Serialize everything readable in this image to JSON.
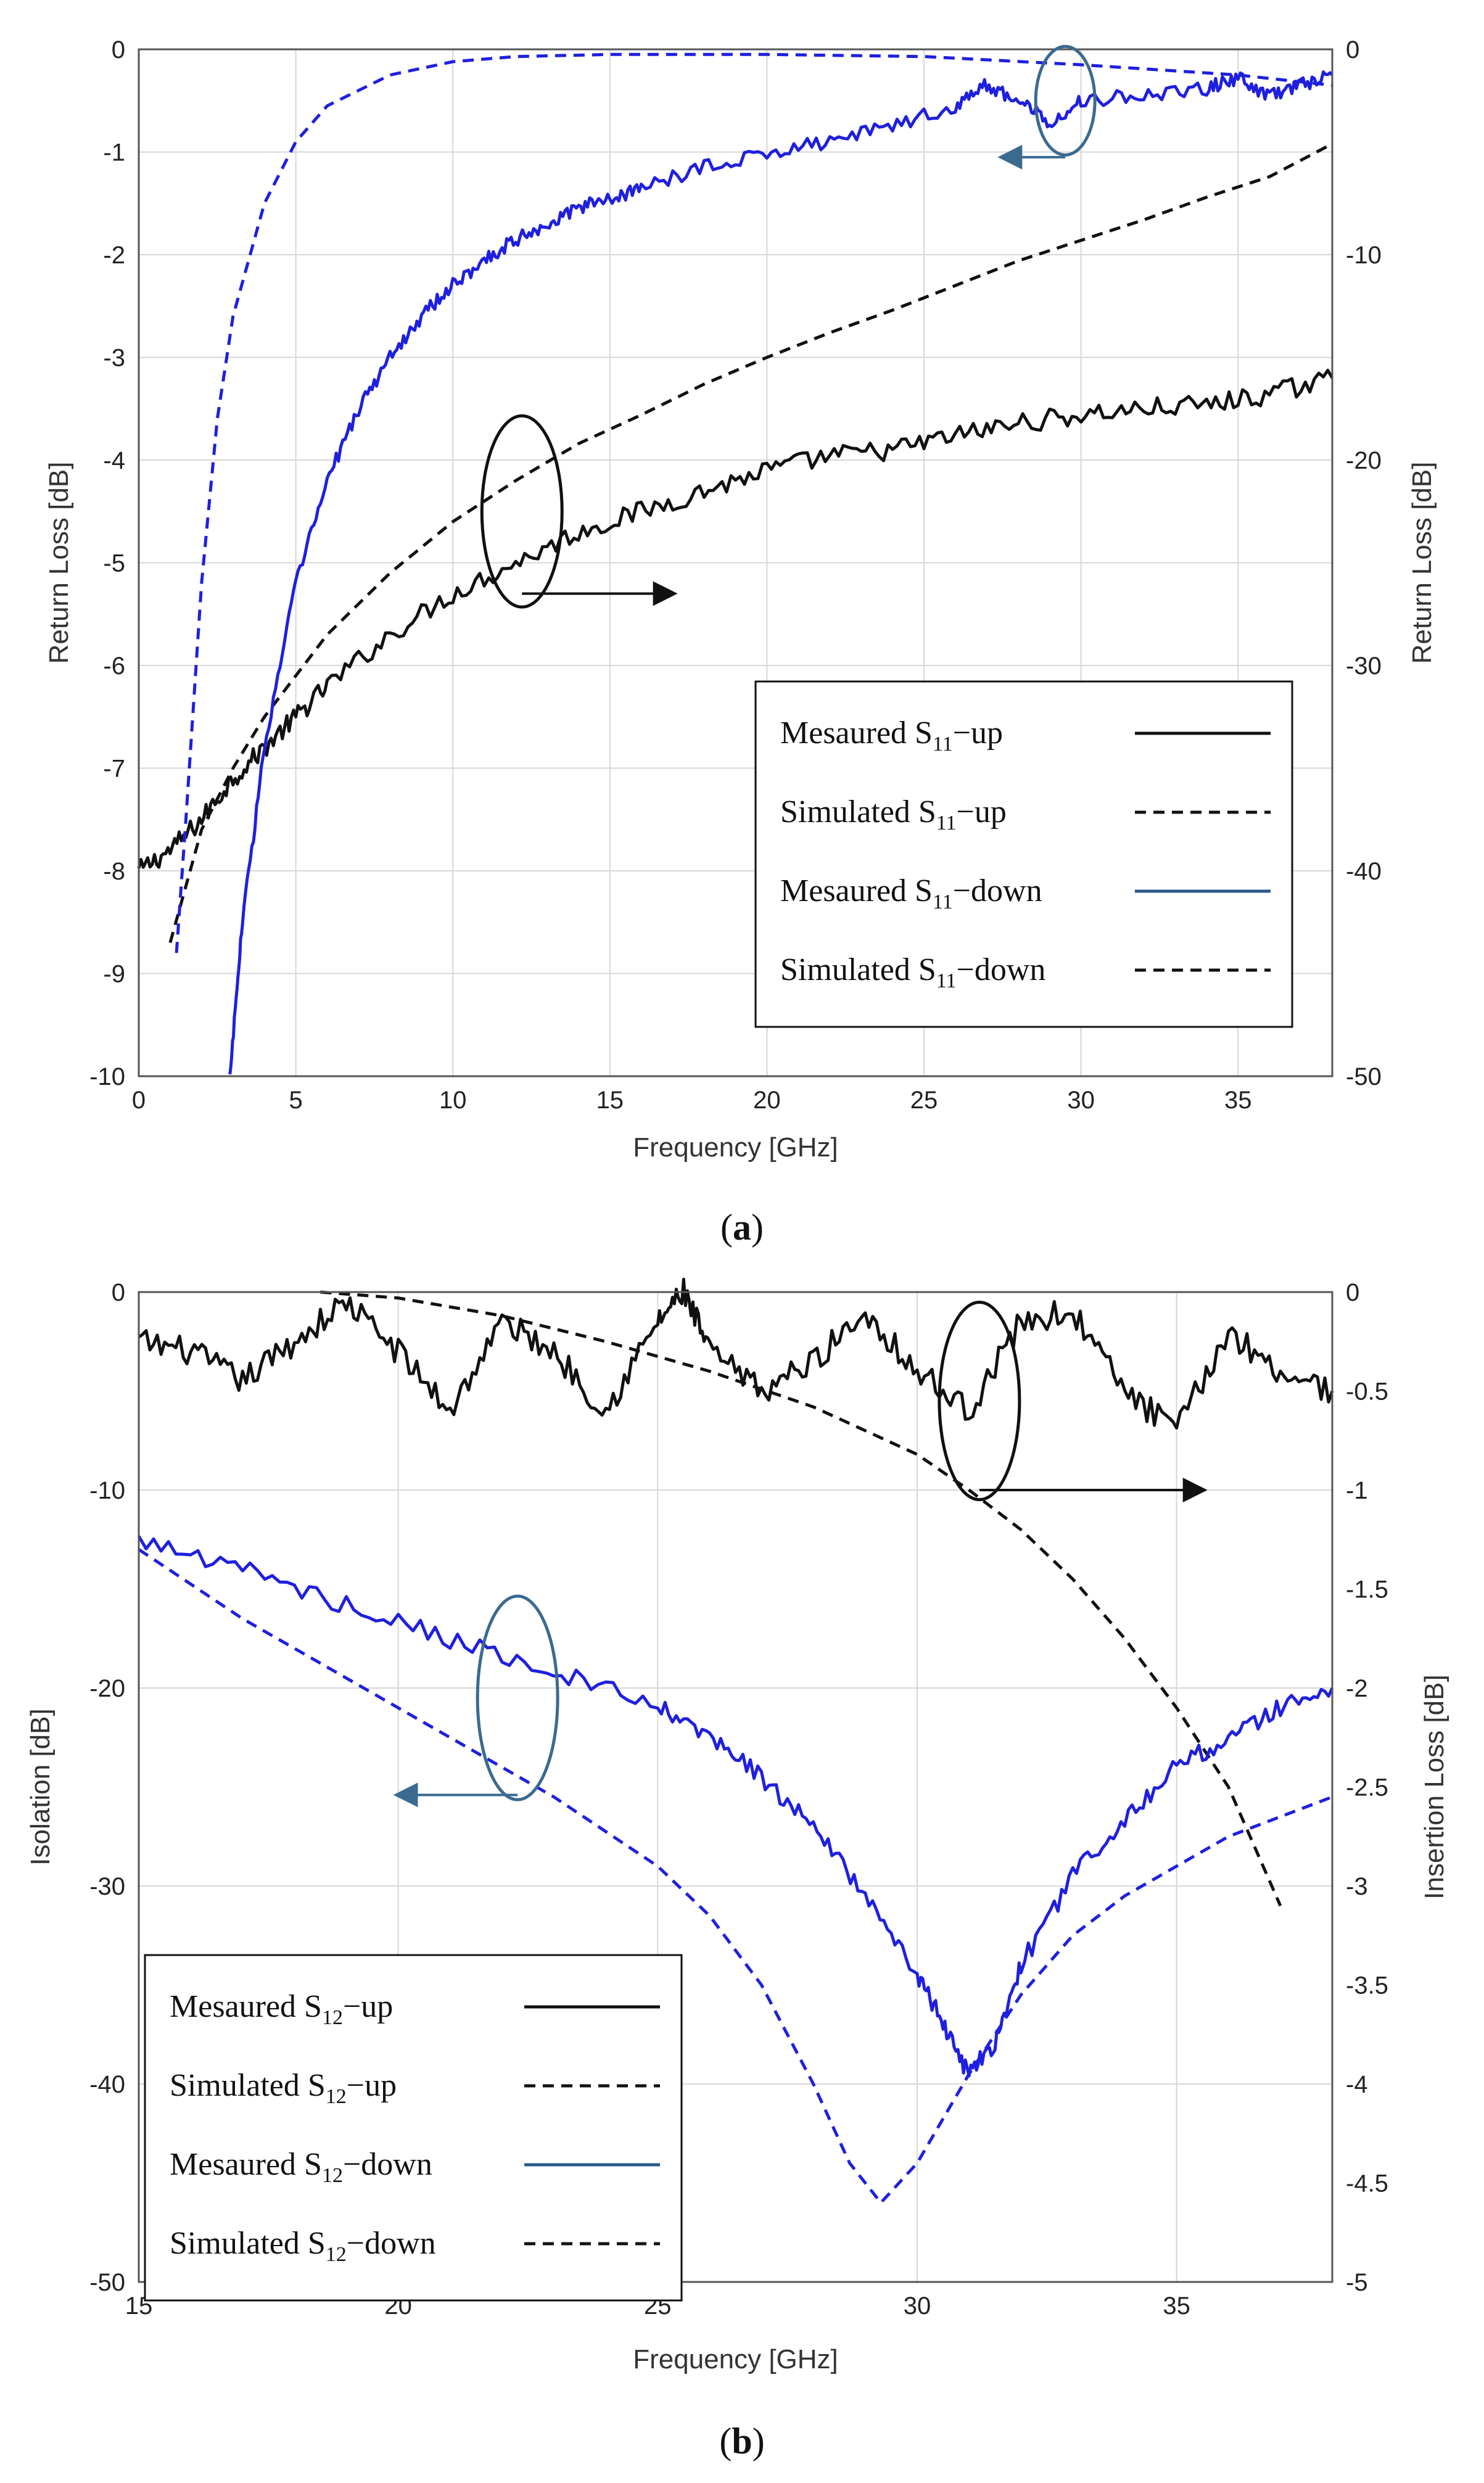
{
  "chart_data": [
    {
      "id": "a",
      "type": "line",
      "caption_letter": "a",
      "xlabel": "Frequency [GHz]",
      "ylabel_left": "Return Loss [dB]",
      "ylabel_right": "Return Loss [dB]",
      "xlim": [
        0,
        38
      ],
      "ylim_left": [
        -10,
        0
      ],
      "ylim_right": [
        -50,
        0
      ],
      "xticks": [
        "0",
        "5",
        "10",
        "15",
        "20",
        "25",
        "30",
        "35"
      ],
      "yticks_left": [
        "0",
        "-1",
        "-2",
        "-3",
        "-4",
        "-5",
        "-6",
        "-7",
        "-8",
        "-9",
        "-10"
      ],
      "yticks_right": [
        "0",
        "-10",
        "-20",
        "-30",
        "-40",
        "-50"
      ],
      "grid": true,
      "legend_position": "bottom-right",
      "series": [
        {
          "name": "Mesaured S11-up",
          "label_main": "Mesaured S",
          "label_sub": "11",
          "label_tail": "−up",
          "axis": "right",
          "style": "solid",
          "color": "#111111",
          "noise": 0.5,
          "x": [
            0,
            1,
            2,
            3,
            4,
            5,
            6,
            8,
            10,
            12,
            14,
            16,
            18,
            20,
            22,
            24,
            26,
            28,
            30,
            32,
            34,
            36,
            38
          ],
          "y": [
            -40,
            -39,
            -37.5,
            -35.5,
            -34,
            -32.5,
            -31,
            -28.5,
            -26.5,
            -25,
            -23.5,
            -22.5,
            -21.5,
            -20.5,
            -19.8,
            -19.5,
            -18.8,
            -18.2,
            -17.8,
            -17.5,
            -17.3,
            -16.8,
            -16
          ]
        },
        {
          "name": "Simulated S11-up",
          "label_main": "Simulated S",
          "label_sub": "11",
          "label_tail": "−up",
          "axis": "right",
          "style": "dashed",
          "color": "#111111",
          "noise": 0,
          "x": [
            1,
            2,
            3,
            4,
            5,
            6,
            8,
            10,
            12,
            14,
            16,
            18,
            20,
            22,
            24,
            26,
            28,
            30,
            32,
            34,
            36,
            38
          ],
          "y": [
            -43.5,
            -38,
            -35,
            -32.5,
            -30.5,
            -28.5,
            -25.5,
            -23,
            -21,
            -19.2,
            -17.8,
            -16.3,
            -15,
            -13.8,
            -12.7,
            -11.5,
            -10.3,
            -9.3,
            -8.3,
            -7.2,
            -6.2,
            -4.6
          ]
        },
        {
          "name": "Mesaured S11-down",
          "label_main": "Mesaured S",
          "label_sub": "11",
          "label_tail": "−down",
          "axis": "left",
          "style": "solid",
          "color": "#1f1fe0",
          "noise": 0.07,
          "x": [
            2.9,
            3.3,
            4,
            5,
            6,
            7,
            8,
            9,
            10,
            11,
            12,
            13,
            14,
            15,
            16,
            18,
            20,
            22,
            24,
            26,
            27,
            28,
            29,
            30,
            32,
            34,
            35,
            36,
            37,
            38
          ],
          "y": [
            -10,
            -8.5,
            -6.8,
            -5.2,
            -4.2,
            -3.5,
            -3,
            -2.6,
            -2.3,
            -2.05,
            -1.85,
            -1.7,
            -1.55,
            -1.45,
            -1.35,
            -1.15,
            -1,
            -0.9,
            -0.75,
            -0.55,
            -0.35,
            -0.5,
            -0.7,
            -0.5,
            -0.45,
            -0.38,
            -0.28,
            -0.45,
            -0.35,
            -0.25
          ]
        },
        {
          "name": "Simulated S11-down",
          "label_main": "Simulated S",
          "label_sub": "11",
          "label_tail": "−down",
          "axis": "left",
          "style": "dashed",
          "color": "#1f1fe0",
          "noise": 0,
          "x": [
            1.2,
            1.5,
            2,
            2.5,
            3,
            4,
            5,
            6,
            8,
            10,
            12,
            15,
            20,
            25,
            30,
            35,
            38
          ],
          "y": [
            -8.8,
            -7.5,
            -5.2,
            -3.6,
            -2.6,
            -1.5,
            -0.9,
            -0.55,
            -0.25,
            -0.12,
            -0.07,
            -0.05,
            -0.05,
            -0.07,
            -0.15,
            -0.25,
            -0.35
          ]
        }
      ]
    },
    {
      "id": "b",
      "type": "line",
      "caption_letter": "b",
      "xlabel": "Frequency [GHz]",
      "ylabel_left": "Isolation [dB]",
      "ylabel_right": "Insertion Loss [dB]",
      "xlim": [
        15,
        38
      ],
      "ylim_left": [
        -50,
        0
      ],
      "ylim_right": [
        -5,
        0
      ],
      "xticks": [
        "15",
        "20",
        "25",
        "30",
        "35"
      ],
      "yticks_left": [
        "0",
        "-10",
        "-20",
        "-30",
        "-40",
        "-50"
      ],
      "yticks_right": [
        "0",
        "-0.5",
        "-1",
        "-1.5",
        "-2",
        "-2.5",
        "-3",
        "-3.5",
        "-4",
        "-4.5",
        "-5"
      ],
      "grid": true,
      "legend_position": "bottom-left",
      "series": [
        {
          "name": "Mesaured S12-up",
          "label_main": "Mesaured S",
          "label_sub": "12",
          "label_tail": "−up",
          "axis": "right",
          "style": "solid",
          "color": "#111111",
          "noise": 0.07,
          "x": [
            15,
            16,
            17,
            18,
            19,
            20,
            21,
            22,
            23,
            24,
            25,
            25.5,
            26,
            27,
            28,
            29,
            30,
            31,
            32,
            33,
            34,
            35,
            36,
            37,
            38
          ],
          "y": [
            -0.25,
            -0.3,
            -0.45,
            -0.25,
            -0.05,
            -0.3,
            -0.6,
            -0.15,
            -0.3,
            -0.6,
            -0.15,
            0,
            -0.3,
            -0.5,
            -0.35,
            -0.1,
            -0.4,
            -0.6,
            -0.15,
            -0.1,
            -0.5,
            -0.7,
            -0.2,
            -0.4,
            -0.5
          ]
        },
        {
          "name": "Simulated S12-up",
          "label_main": "Simulated S",
          "label_sub": "12",
          "label_tail": "−up",
          "axis": "right",
          "style": "dashed",
          "color": "#111111",
          "noise": 0,
          "x": [
            18.5,
            20,
            22,
            24,
            26,
            28,
            30,
            31,
            32,
            33,
            34,
            35,
            36,
            37
          ],
          "y": [
            0,
            -0.03,
            -0.12,
            -0.25,
            -0.4,
            -0.58,
            -0.82,
            -1,
            -1.2,
            -1.45,
            -1.75,
            -2.1,
            -2.5,
            -3.1
          ]
        },
        {
          "name": "Mesaured S12-down",
          "label_main": "Mesaured S",
          "label_sub": "12",
          "label_tail": "−down",
          "axis": "left",
          "style": "solid",
          "color": "#1f1fe0",
          "noise": 0.5,
          "x": [
            15,
            17,
            19,
            21,
            23,
            25,
            26,
            27,
            28,
            29,
            30,
            30.5,
            31,
            31.5,
            32,
            33,
            34,
            35,
            36,
            37,
            38
          ],
          "y": [
            -12.5,
            -14,
            -15.8,
            -17.5,
            -19.2,
            -21,
            -22.5,
            -24.5,
            -27,
            -30.5,
            -34.5,
            -37,
            -39.5,
            -38,
            -34,
            -29.5,
            -26.5,
            -24,
            -22.5,
            -21,
            -20
          ]
        },
        {
          "name": "Simulated S12-down",
          "label_main": "Simulated S",
          "label_sub": "12",
          "label_tail": "−down",
          "axis": "left",
          "style": "dashed",
          "color": "#1f1fe0",
          "noise": 0,
          "x": [
            15,
            17,
            19,
            21,
            23,
            25,
            26,
            27,
            28,
            28.7,
            29.3,
            30,
            31,
            32,
            33,
            34,
            35,
            36,
            37,
            38
          ],
          "y": [
            -13,
            -16.5,
            -19.5,
            -22.5,
            -25.5,
            -29,
            -31.5,
            -35,
            -40,
            -44,
            -46,
            -44,
            -39.5,
            -35.5,
            -32.5,
            -30.5,
            -29,
            -27.5,
            -26.5,
            -25.5
          ]
        }
      ]
    }
  ]
}
